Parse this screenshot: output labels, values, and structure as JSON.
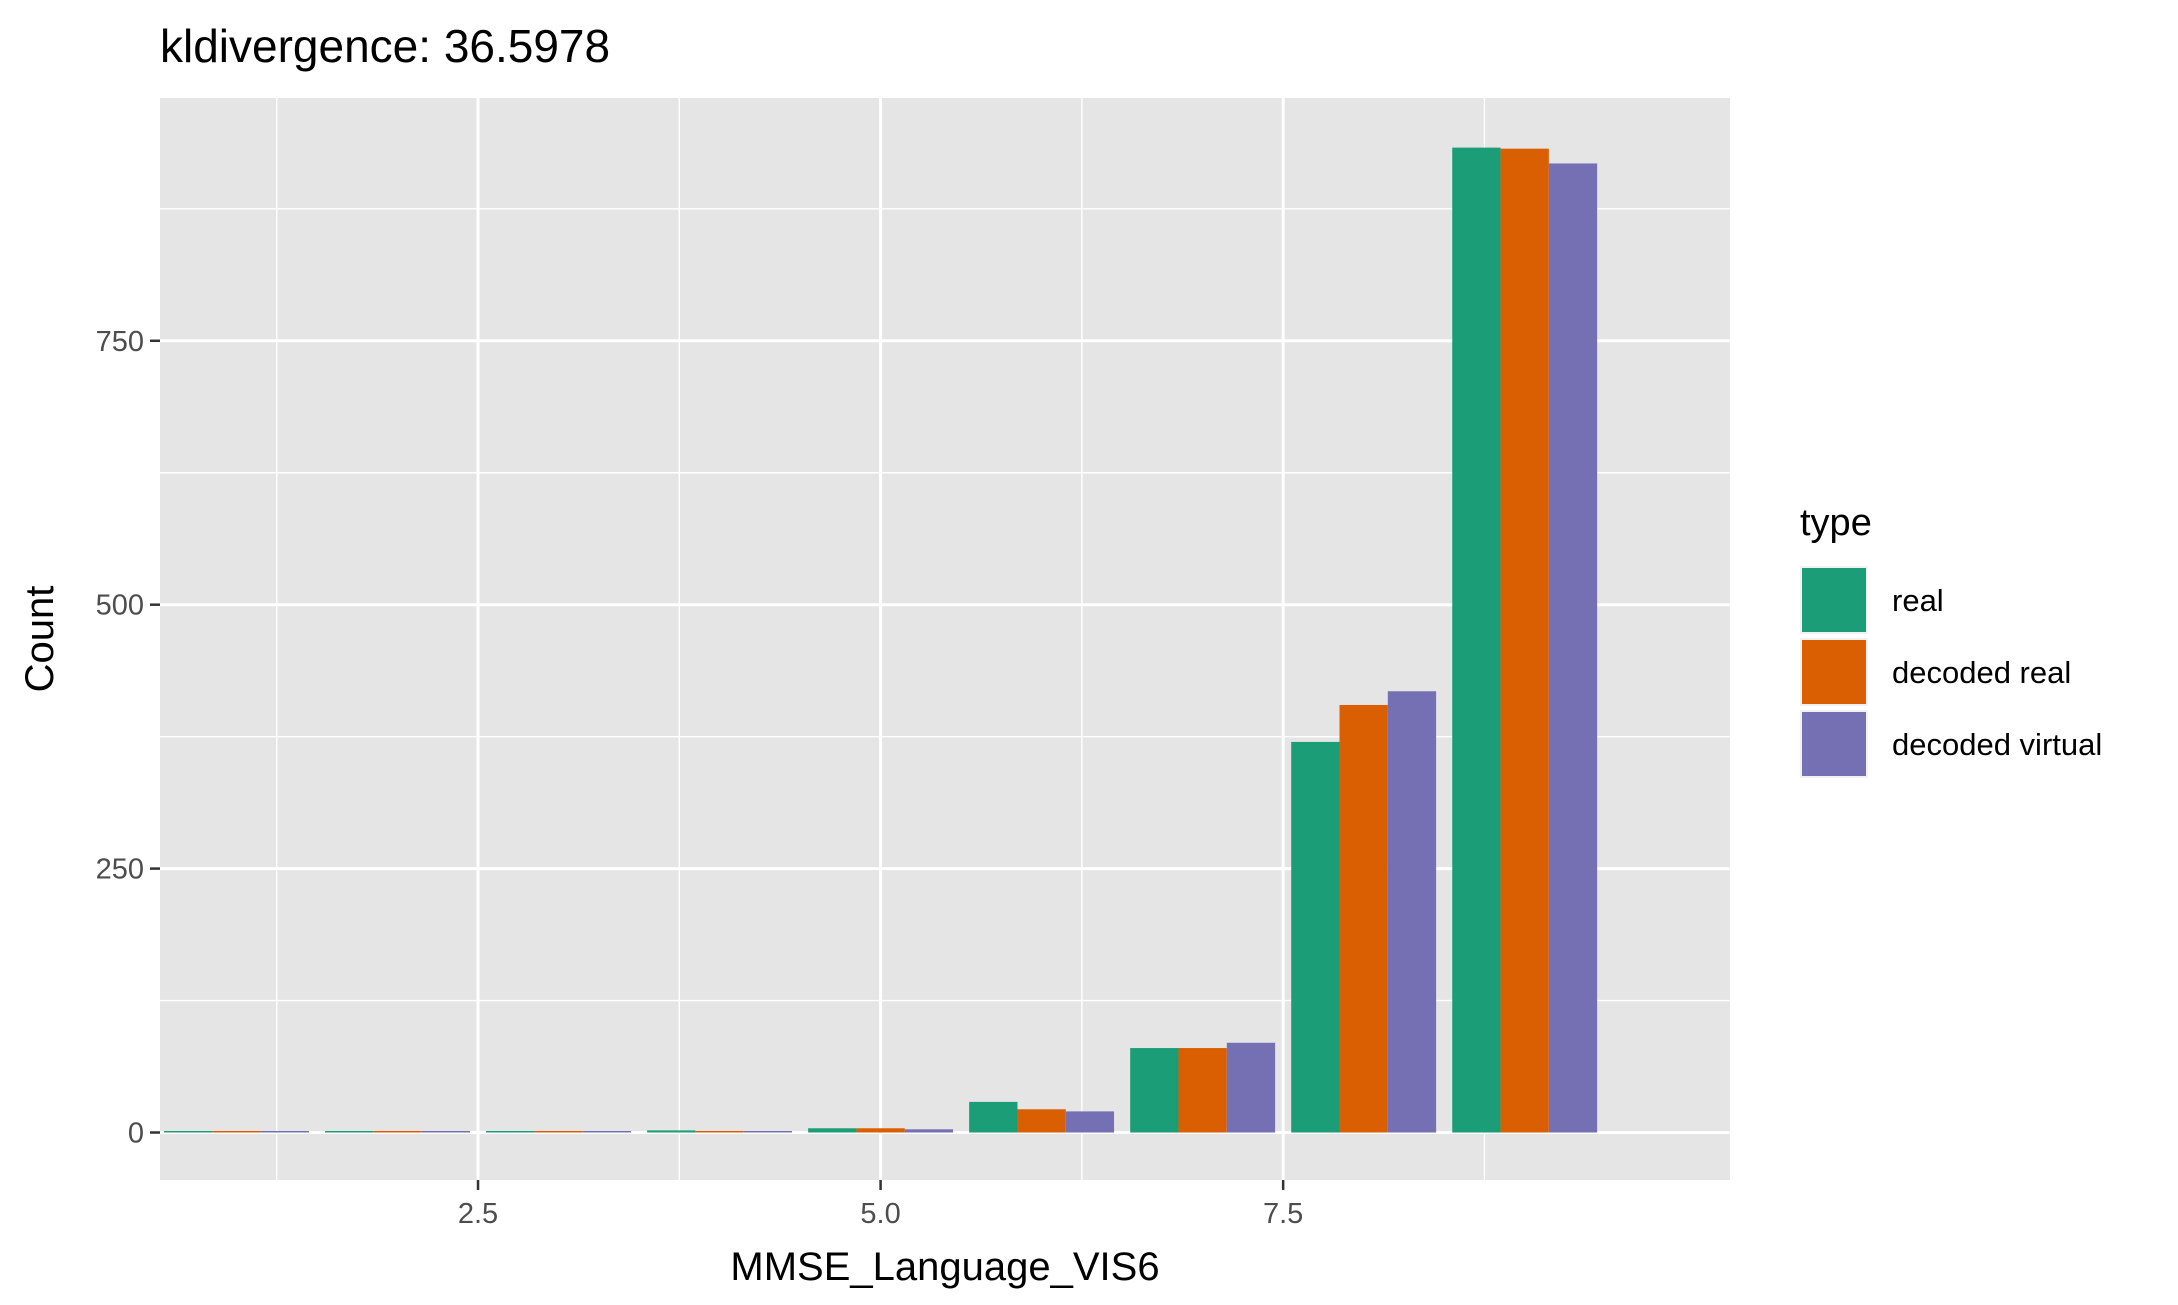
{
  "chart_data": {
    "type": "bar",
    "title": "kldivergence: 36.5978",
    "xlabel": "MMSE_Language_VIS6",
    "ylabel": "Count",
    "x": [
      1,
      2,
      3,
      4,
      5,
      6,
      7,
      8,
      9
    ],
    "xlim": [
      0.525,
      10.275
    ],
    "ylim": [
      -45,
      980
    ],
    "x_ticks": [
      2.5,
      5.0,
      7.5
    ],
    "x_tick_labels": [
      "2.5",
      "5.0",
      "7.5"
    ],
    "y_ticks": [
      0,
      250,
      500,
      750
    ],
    "y_tick_labels": [
      "0",
      "250",
      "500",
      "750"
    ],
    "grid": true,
    "legend": {
      "title": "type",
      "position": "right"
    },
    "series": [
      {
        "name": "real",
        "color": "#1b9e77",
        "values": [
          1,
          1,
          1,
          2,
          4,
          29,
          80,
          370,
          933
        ]
      },
      {
        "name": "decoded real",
        "color": "#d95f02",
        "values": [
          1,
          1,
          1,
          1,
          4,
          22,
          80,
          405,
          932
        ]
      },
      {
        "name": "decoded virtual",
        "color": "#7570b3",
        "values": [
          1,
          1,
          1,
          1,
          3,
          20,
          85,
          418,
          918
        ]
      }
    ]
  }
}
